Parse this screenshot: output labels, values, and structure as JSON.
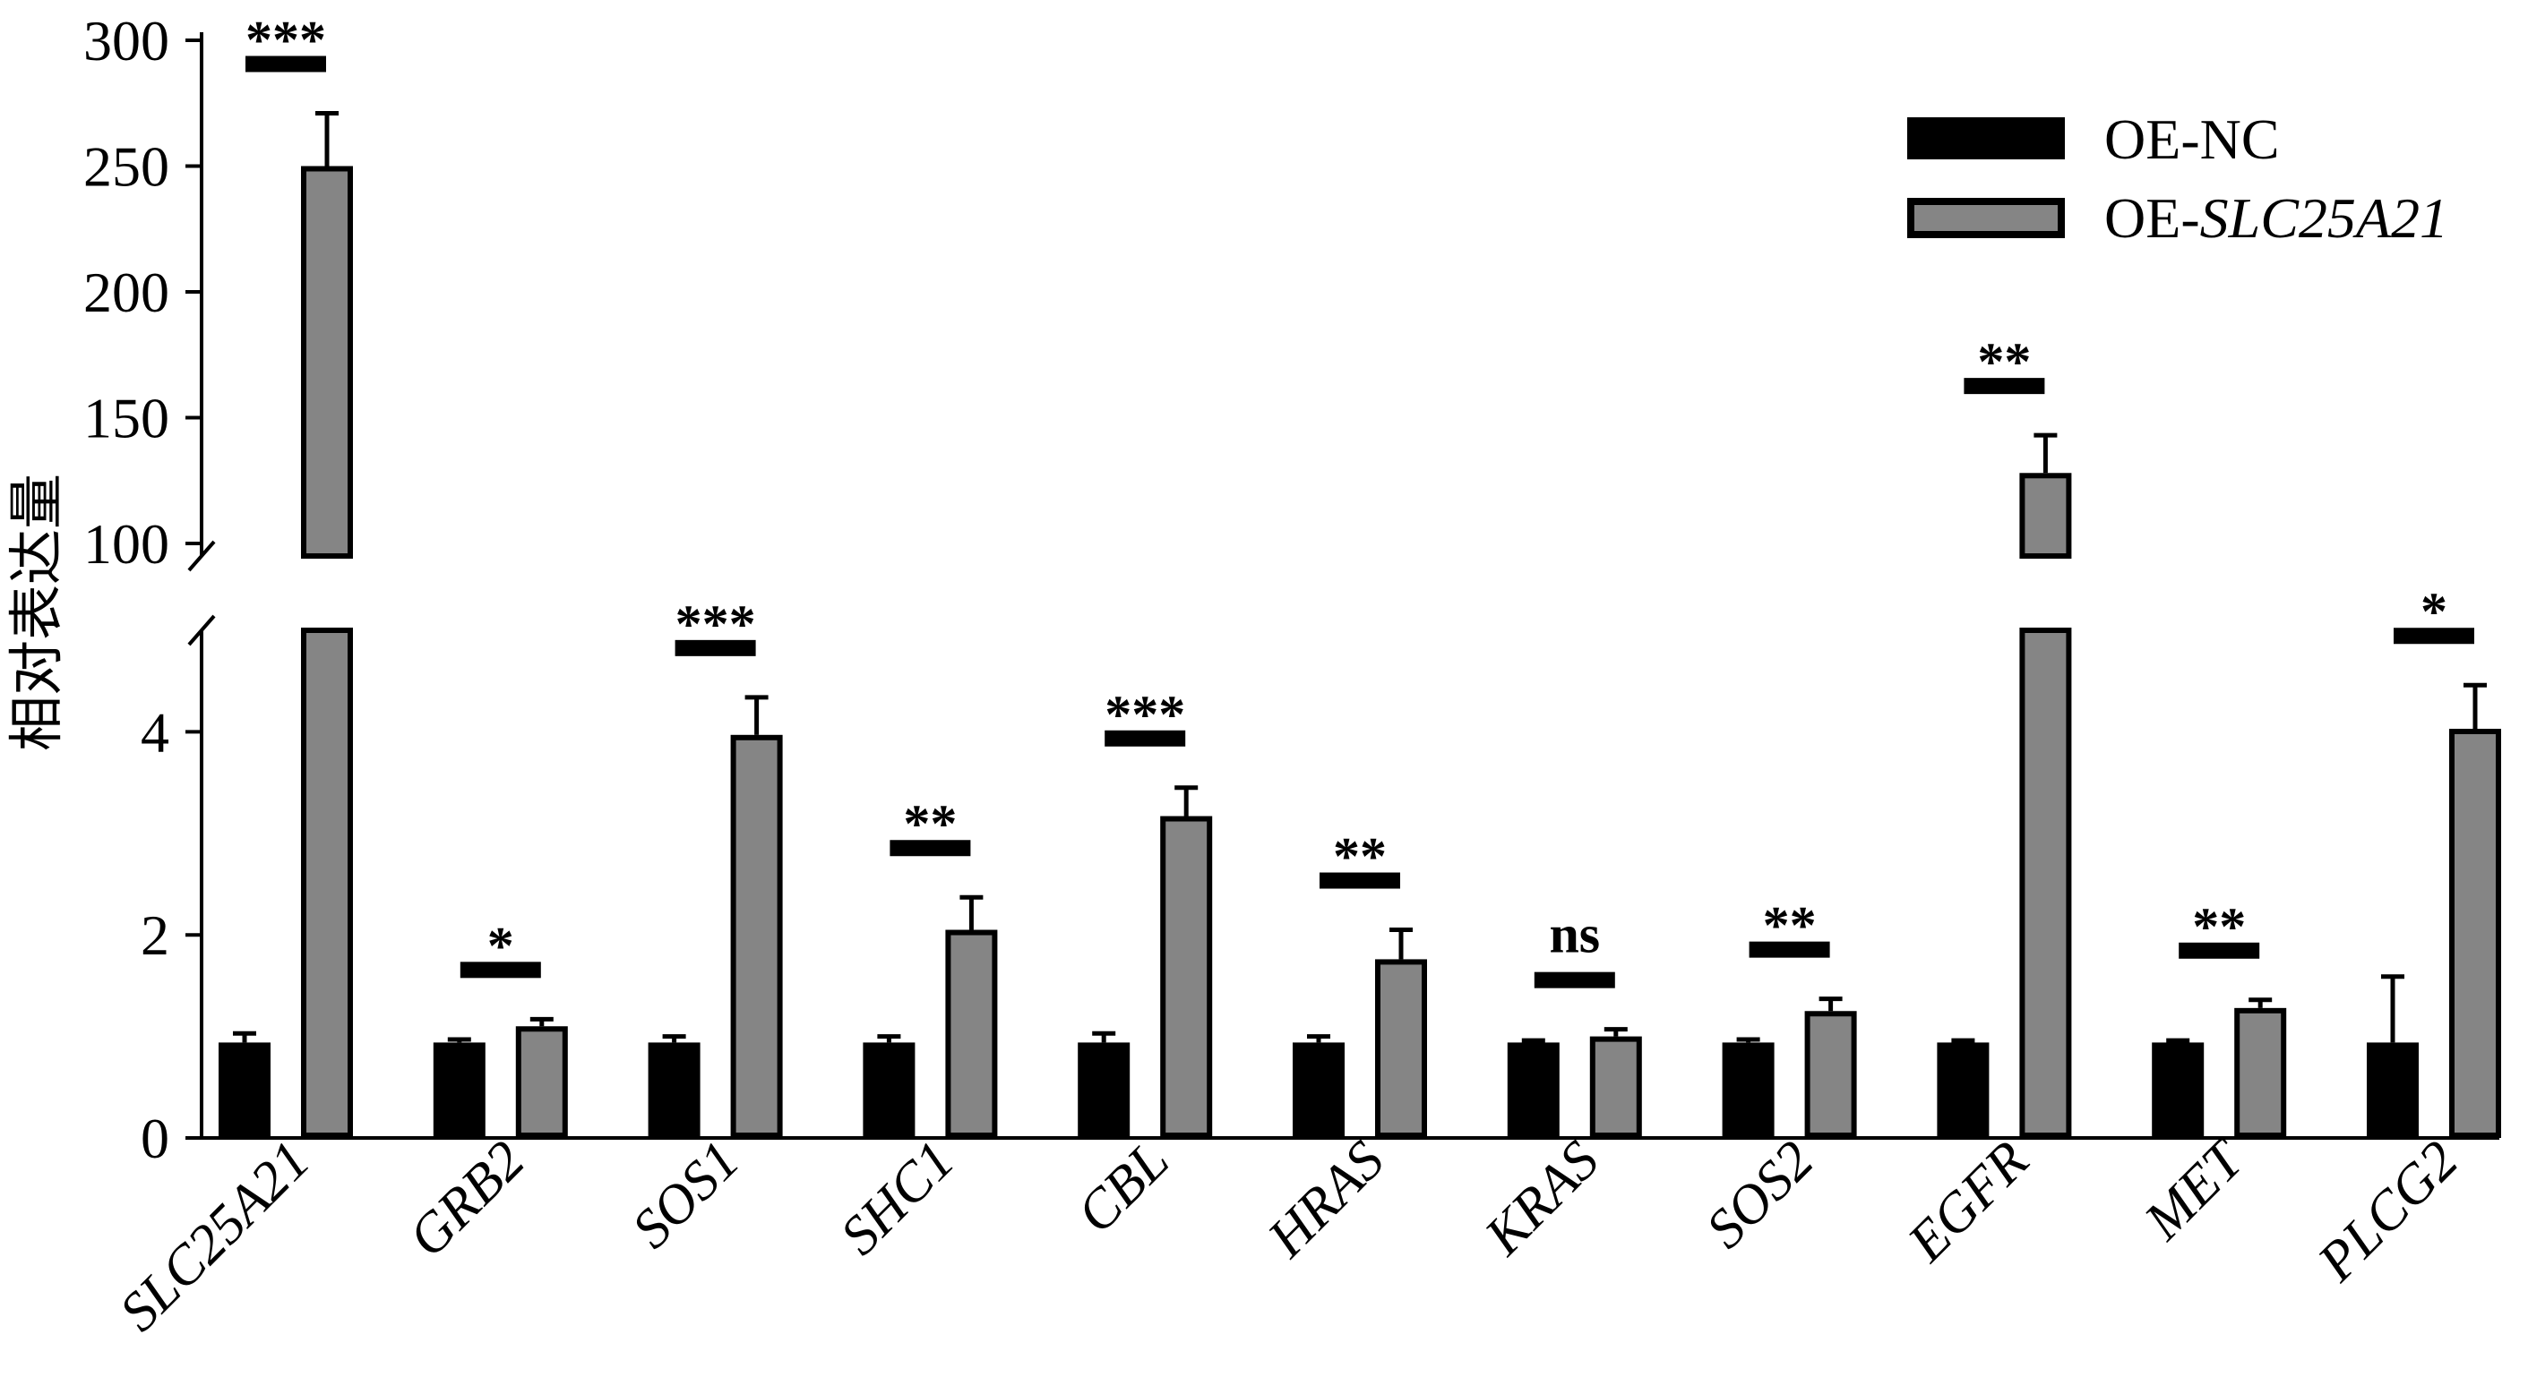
{
  "chart_data": {
    "type": "bar",
    "ylabel": "相对表达量",
    "categories": [
      "SLC25A21",
      "GRB2",
      "SOS1",
      "SHC1",
      "CBL",
      "HRAS",
      "KRAS",
      "SOS2",
      "EGFR",
      "MET",
      "PLCG2"
    ],
    "series": [
      {
        "name": "OE-NC",
        "color": "#000000",
        "values": [
          0.94,
          0.94,
          0.94,
          0.94,
          0.94,
          0.94,
          0.94,
          0.94,
          0.94,
          0.94,
          0.94
        ],
        "errors": [
          0.09,
          0.03,
          0.06,
          0.06,
          0.09,
          0.06,
          0.02,
          0.03,
          0.02,
          0.02,
          0.65
        ]
      },
      {
        "name": "OE-SLC25A21",
        "color": "#858585",
        "italic_after_dash": true,
        "values": [
          250,
          1.1,
          3.97,
          2.05,
          3.17,
          1.76,
          1.0,
          1.25,
          128,
          1.28,
          4.03
        ],
        "errors": [
          21,
          0.07,
          0.37,
          0.32,
          0.28,
          0.29,
          0.07,
          0.12,
          15,
          0.08,
          0.43
        ]
      }
    ],
    "significance": [
      "***",
      "*",
      "***",
      "**",
      "***",
      "**",
      "ns",
      "**",
      "**",
      "**",
      "*"
    ],
    "y_axis": {
      "broken": true,
      "lower_range": [
        0,
        5
      ],
      "upper_range": [
        95,
        300
      ],
      "lower_ticks": [
        0,
        2,
        4
      ],
      "upper_ticks": [
        100,
        150,
        200,
        250,
        300
      ]
    },
    "legend_position": "top-right",
    "grid": false
  }
}
